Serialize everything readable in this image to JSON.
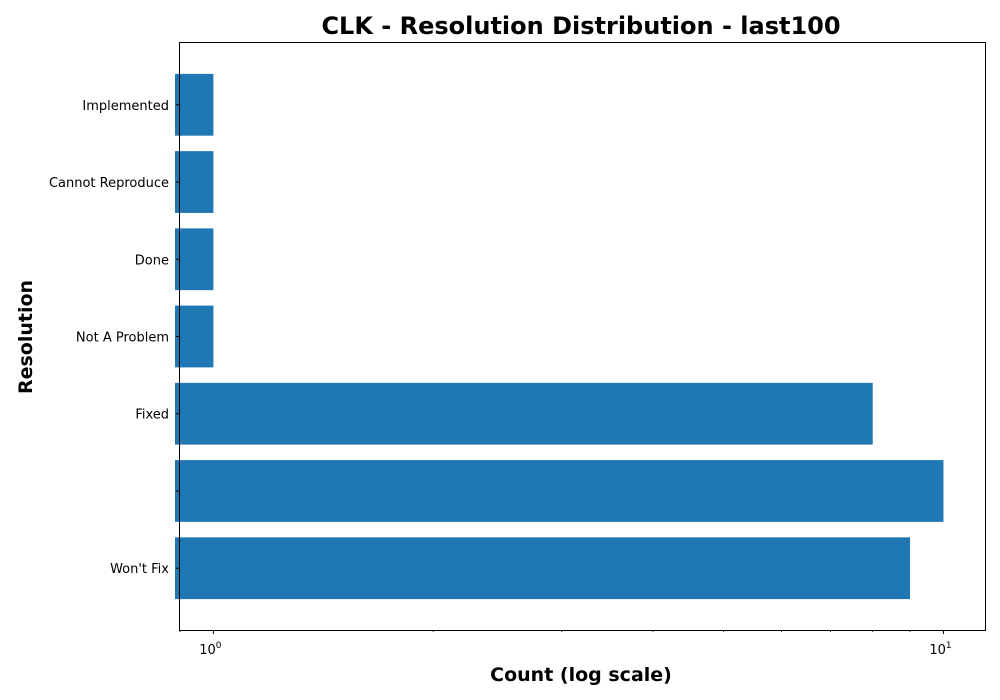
{
  "chart_data": {
    "type": "bar",
    "orientation": "horizontal",
    "title": "CLK - Resolution Distribution - last100",
    "xlabel": "Count (log scale)",
    "ylabel": "Resolution",
    "x_scale": "log",
    "xlim": [
      0.9,
      11.4
    ],
    "x_ticks": [
      {
        "value": 1,
        "label": "10",
        "exp": "0"
      },
      {
        "value": 10,
        "label": "10",
        "exp": "1"
      }
    ],
    "categories": [
      "Won't Fix",
      "",
      "Fixed",
      "Not A Problem",
      "Done",
      "Cannot Reproduce",
      "Implemented"
    ],
    "values": [
      9,
      10,
      8,
      1,
      1,
      1,
      1
    ],
    "bar_color": "#1f77b4",
    "grid": false,
    "legend": "none"
  }
}
